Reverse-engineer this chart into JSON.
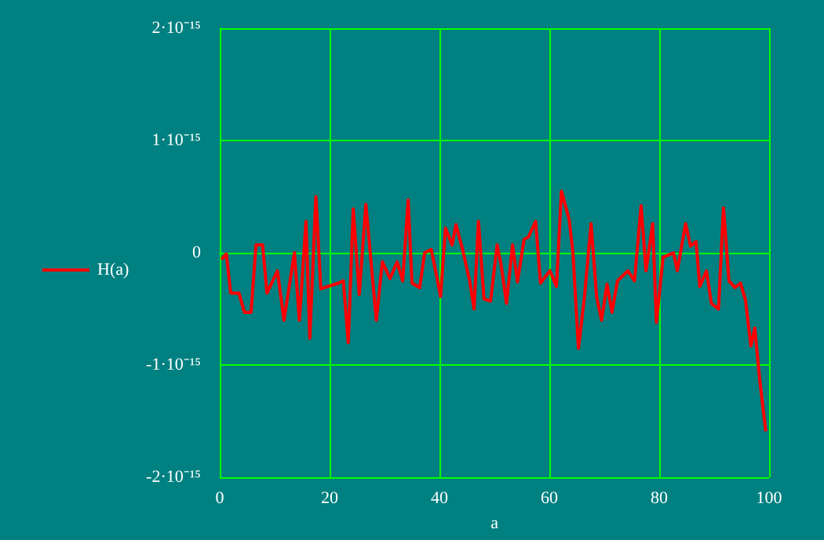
{
  "chart_data": {
    "type": "line",
    "xlabel": "a",
    "x": [
      0.3,
      1.2,
      2,
      3.5,
      4.5,
      5.7,
      6.6,
      7.8,
      8.6,
      10.5,
      11.7,
      13.6,
      14.5,
      15.7,
      16.4,
      17.5,
      18.4,
      21.6,
      22.5,
      23.4,
      24.3,
      25.4,
      26.6,
      28.5,
      29.6,
      31,
      32.3,
      33.3,
      34.3,
      35,
      36.4,
      37.3,
      38.5,
      39.5,
      40.2,
      41.1,
      42.3,
      43,
      44.2,
      45.5,
      46.3,
      47.1,
      48.1,
      49.3,
      50.5,
      51.2,
      52.2,
      53.3,
      54.2,
      55.4,
      56.2,
      57.5,
      58.4,
      60.1,
      61.3,
      62.2,
      63.6,
      64.3,
      65.3,
      66.4,
      67.6,
      68.6,
      69.5,
      70.5,
      71.4,
      72.4,
      74.3,
      75.5,
      76.7,
      77.6,
      78.8,
      79.5,
      80.7,
      82.6,
      83.3,
      84.8,
      85.7,
      86.7,
      87.4,
      88.6,
      89.5,
      90.8,
      91.7,
      92.7,
      93.8,
      94.8,
      95.7,
      96.7,
      97.4,
      98.3,
      99.4
    ],
    "series": [
      {
        "name": "H(a)",
        "color": "#ff0000",
        "values": [
          -6e-17,
          -1e-17,
          -3.6e-16,
          -3.6e-16,
          -5.3e-16,
          -5.3e-16,
          7e-17,
          7e-17,
          -3.6e-16,
          -1.6e-16,
          -6e-16,
          0,
          -6e-16,
          2.8e-16,
          -7.6e-16,
          5e-16,
          -3.2e-16,
          -2.7e-16,
          -2.5e-16,
          -8e-16,
          3.9e-16,
          -3.7e-16,
          4.3e-16,
          -6e-16,
          -8e-17,
          -2.3e-16,
          -8e-17,
          -2.5e-16,
          4.7e-16,
          -2.7e-16,
          -3.1e-16,
          0,
          3e-17,
          -2.1e-16,
          -3.9e-16,
          2.2e-16,
          7e-17,
          2.5e-16,
          3e-17,
          -2.5e-16,
          -5e-16,
          2.8e-16,
          -4.1e-16,
          -4.3e-16,
          7e-17,
          -1e-16,
          -4.5e-16,
          7e-17,
          -2.6e-16,
          1.2e-16,
          1.4e-16,
          2.8e-16,
          -2.7e-16,
          -1.6e-16,
          -3e-16,
          5.5e-16,
          3e-16,
          0,
          -8.5e-16,
          -3.9e-16,
          2.6e-16,
          -3.9e-16,
          -6e-16,
          -2.8e-16,
          -5.3e-16,
          -2.5e-16,
          -1.6e-16,
          -2.5e-16,
          4.2e-16,
          -1.6e-16,
          2.6e-16,
          -6.2e-16,
          -4e-17,
          0,
          -1.6e-16,
          2.6e-16,
          6e-17,
          1e-16,
          -3e-16,
          -1.6e-16,
          -4.5e-16,
          -5e-16,
          4e-16,
          -2.5e-16,
          -3.1e-16,
          -2.7e-16,
          -4.2e-16,
          -8.3e-16,
          -6.7e-16,
          -1.13e-15,
          -1.59e-15
        ]
      }
    ],
    "xlim": [
      0,
      100
    ],
    "xticks": [
      0,
      20,
      40,
      60,
      80,
      100
    ],
    "ylim": [
      -2e-15,
      2e-15
    ],
    "yticks": [
      {
        "value": -2e-15,
        "label": "-2·10⁻¹⁵"
      },
      {
        "value": -1e-15,
        "label": "-1·10⁻¹⁵"
      },
      0,
      {
        "value": 1e-15,
        "label": "1·10⁻¹⁵"
      },
      {
        "value": 2e-15,
        "label": "2·10⁻¹⁵"
      }
    ],
    "grid": true,
    "legend": "left",
    "marker": "none",
    "line_style": "solid"
  }
}
